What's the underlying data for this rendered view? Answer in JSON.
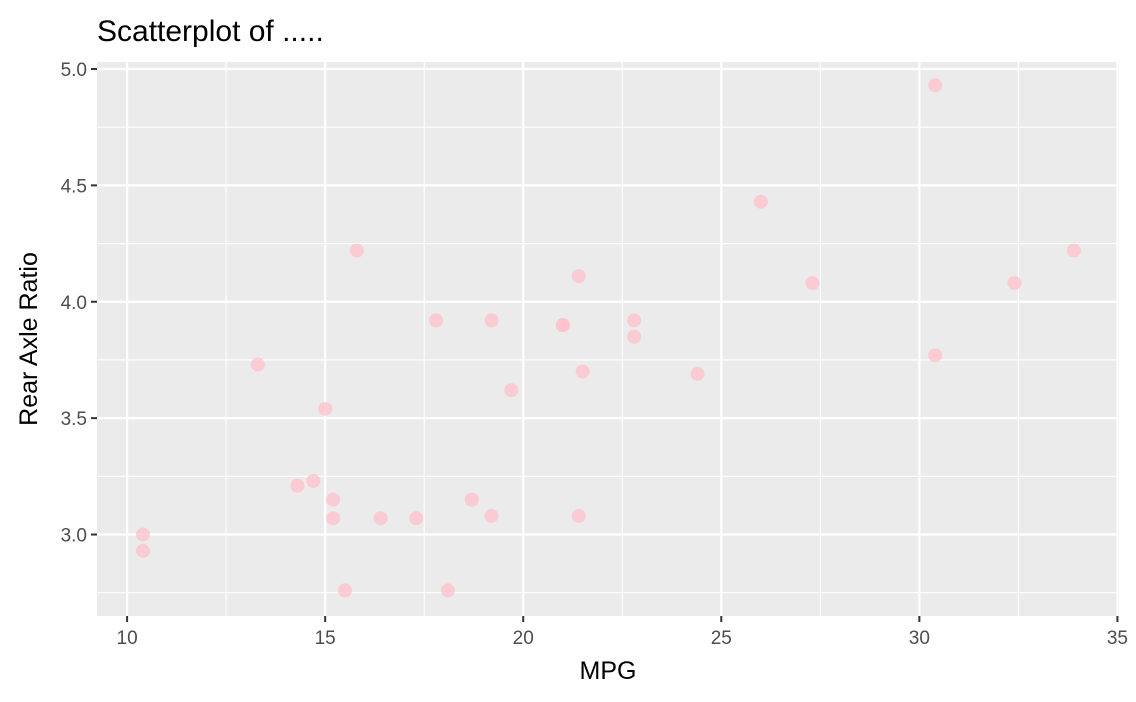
{
  "chart_data": {
    "type": "scatter",
    "title": "Scatterplot of .....",
    "xlabel": "MPG",
    "ylabel": "Rear Axle Ratio",
    "xlim": [
      9.24,
      35.04
    ],
    "ylim": [
      2.65,
      5.03
    ],
    "x_ticks": [
      10,
      15,
      20,
      25,
      30,
      35
    ],
    "y_ticks": [
      3.0,
      3.5,
      4.0,
      4.5,
      5.0
    ],
    "x_tick_labels": [
      "10",
      "15",
      "20",
      "25",
      "30",
      "35"
    ],
    "y_tick_labels": [
      "3.0",
      "3.5",
      "4.0",
      "4.5",
      "5.0"
    ],
    "grid": true,
    "legend": "none",
    "point_color": "#ffc0cb",
    "panel_color": "#ebebeb",
    "grid_color": "#ffffff",
    "series": [
      {
        "points": [
          {
            "x": 21.0,
            "y": 3.9
          },
          {
            "x": 21.0,
            "y": 3.9
          },
          {
            "x": 22.8,
            "y": 3.85
          },
          {
            "x": 21.4,
            "y": 3.08
          },
          {
            "x": 18.7,
            "y": 3.15
          },
          {
            "x": 18.1,
            "y": 2.76
          },
          {
            "x": 14.3,
            "y": 3.21
          },
          {
            "x": 24.4,
            "y": 3.69
          },
          {
            "x": 22.8,
            "y": 3.92
          },
          {
            "x": 19.2,
            "y": 3.92
          },
          {
            "x": 17.8,
            "y": 3.92
          },
          {
            "x": 16.4,
            "y": 3.07
          },
          {
            "x": 17.3,
            "y": 3.07
          },
          {
            "x": 15.2,
            "y": 3.07
          },
          {
            "x": 10.4,
            "y": 2.93
          },
          {
            "x": 10.4,
            "y": 3.0
          },
          {
            "x": 14.7,
            "y": 3.23
          },
          {
            "x": 32.4,
            "y": 4.08
          },
          {
            "x": 30.4,
            "y": 4.93
          },
          {
            "x": 33.9,
            "y": 4.22
          },
          {
            "x": 21.5,
            "y": 3.7
          },
          {
            "x": 15.5,
            "y": 2.76
          },
          {
            "x": 15.2,
            "y": 3.15
          },
          {
            "x": 13.3,
            "y": 3.73
          },
          {
            "x": 19.2,
            "y": 3.08
          },
          {
            "x": 27.3,
            "y": 4.08
          },
          {
            "x": 26.0,
            "y": 4.43
          },
          {
            "x": 30.4,
            "y": 3.77
          },
          {
            "x": 15.8,
            "y": 4.22
          },
          {
            "x": 19.7,
            "y": 3.62
          },
          {
            "x": 15.0,
            "y": 3.54
          },
          {
            "x": 21.4,
            "y": 4.11
          }
        ]
      }
    ]
  }
}
